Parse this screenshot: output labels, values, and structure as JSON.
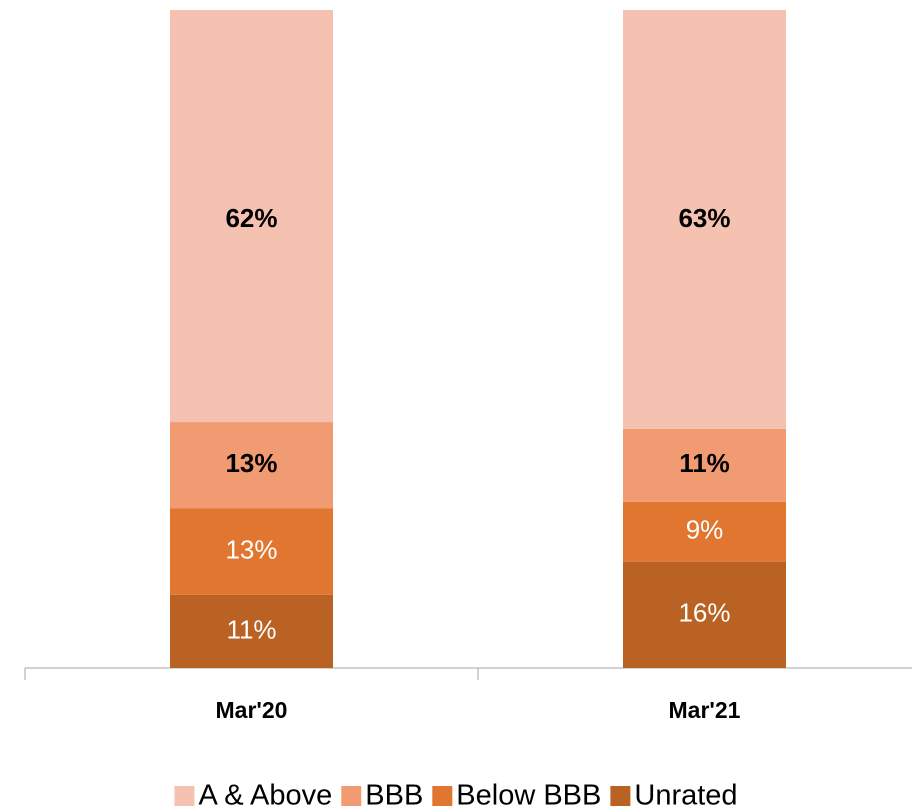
{
  "chart_data": {
    "type": "stacked_bar",
    "categories": [
      "Mar'20",
      "Mar'21"
    ],
    "series": [
      {
        "name": "Unrated",
        "color": "#b96224",
        "values": [
          11,
          16
        ],
        "value_labels": [
          "11%",
          "16%"
        ]
      },
      {
        "name": "Below BBB",
        "color": "#e0762f",
        "values": [
          13,
          9
        ],
        "value_labels": [
          "13%",
          "9%"
        ]
      },
      {
        "name": "BBB",
        "color": "#f09b71",
        "values": [
          13,
          11
        ],
        "value_labels": [
          "13%",
          "11%"
        ]
      },
      {
        "name": "A & Above",
        "color": "#f5c2b1",
        "values": [
          62,
          63
        ],
        "value_labels": [
          "62%",
          "63%"
        ]
      }
    ],
    "legend": "bottom"
  }
}
